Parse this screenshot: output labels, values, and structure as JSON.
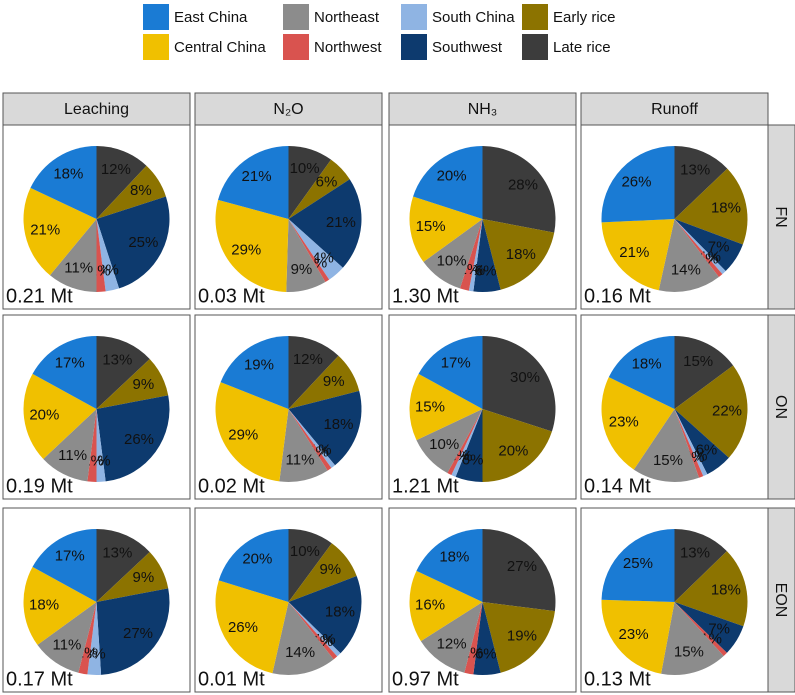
{
  "chart_data": {
    "type": "pie",
    "categories": [
      "East China",
      "Central China",
      "Northeast",
      "Northwest",
      "South China",
      "Southwest",
      "Early rice",
      "Late rice"
    ],
    "colors": [
      "#1a7bd4",
      "#f0c000",
      "#8c8c8c",
      "#d9534f",
      "#8fb4e3",
      "#0d3a6e",
      "#8c7300",
      "#3c3c3c"
    ],
    "columns": [
      "Leaching",
      "N₂O",
      "NH₃",
      "Runoff"
    ],
    "rows": [
      "FN",
      "ON",
      "EON"
    ],
    "panels": [
      [
        {
          "total": "0.21 Mt",
          "values": [
            18,
            21,
            11,
            2,
            3,
            25,
            8,
            12
          ],
          "value_labels": [
            "18%",
            "21%",
            "11%",
            "2%",
            "3%",
            "25%",
            "8%",
            "12%"
          ]
        },
        {
          "total": "0.03 Mt",
          "values": [
            21,
            29,
            9,
            1,
            4,
            21,
            6,
            10
          ],
          "value_labels": [
            "21%",
            "29%",
            "9%",
            "1%",
            "4%",
            "21%",
            "6%",
            "10%"
          ]
        },
        {
          "total": "1.30 Mt",
          "values": [
            20,
            15,
            10,
            2,
            1,
            6,
            18,
            28
          ],
          "value_labels": [
            "20%",
            "15%",
            "10%",
            "2%",
            "1%",
            "6%",
            "18%",
            "28%"
          ]
        },
        {
          "total": "0.16 Mt",
          "values": [
            26,
            21,
            14,
            1,
            1,
            7,
            18,
            13
          ],
          "value_labels": [
            "26%",
            "21%",
            "14%",
            "1%",
            "1%",
            "7%",
            "18%",
            "13%"
          ]
        }
      ],
      [
        {
          "total": "0.19 Mt",
          "values": [
            17,
            20,
            11,
            2,
            2,
            26,
            9,
            13
          ],
          "value_labels": [
            "17%",
            "20%",
            "11%",
            "2%",
            "2%",
            "26%",
            "9%",
            "13%"
          ]
        },
        {
          "total": "0.02 Mt",
          "values": [
            19,
            29,
            11,
            1,
            1,
            18,
            9,
            12
          ],
          "value_labels": [
            "19%",
            "29%",
            "11%",
            "1%",
            "1%",
            "18%",
            "9%",
            "12%"
          ]
        },
        {
          "total": "1.21 Mt",
          "values": [
            17,
            15,
            10,
            1,
            1,
            6,
            20,
            30
          ],
          "value_labels": [
            "17%",
            "15%",
            "10%",
            "1%",
            "1%",
            "6%",
            "20%",
            "30%"
          ]
        },
        {
          "total": "0.14 Mt",
          "values": [
            18,
            23,
            15,
            1,
            1,
            6,
            22,
            15
          ],
          "value_labels": [
            "18%",
            "23%",
            "15%",
            "1%",
            "1%",
            "6%",
            "22%",
            "15%"
          ]
        }
      ],
      [
        {
          "total": "0.17 Mt",
          "values": [
            17,
            18,
            11,
            2,
            3,
            27,
            9,
            13
          ],
          "value_labels": [
            "17%",
            "18%",
            "11%",
            "2%",
            "3%",
            "27%",
            "9%",
            "13%"
          ]
        },
        {
          "total": "0.01 Mt",
          "values": [
            20,
            26,
            14,
            1,
            1,
            18,
            9,
            10
          ],
          "value_labels": [
            "20%",
            "26%",
            "14%",
            "1%",
            "1%",
            "18%",
            "9%",
            "10%"
          ]
        },
        {
          "total": "0.97 Mt",
          "values": [
            18,
            16,
            12,
            2,
            null,
            6,
            19,
            27
          ],
          "value_labels": [
            "18%",
            "16%",
            "12%",
            "2%",
            null,
            "6%",
            "19%",
            "27%"
          ]
        },
        {
          "total": "0.13 Mt",
          "values": [
            25,
            23,
            15,
            1,
            null,
            7,
            18,
            13
          ],
          "value_labels": [
            "25%",
            "23%",
            "15%",
            "1%",
            null,
            "7%",
            "18%",
            "13%"
          ]
        }
      ]
    ]
  }
}
